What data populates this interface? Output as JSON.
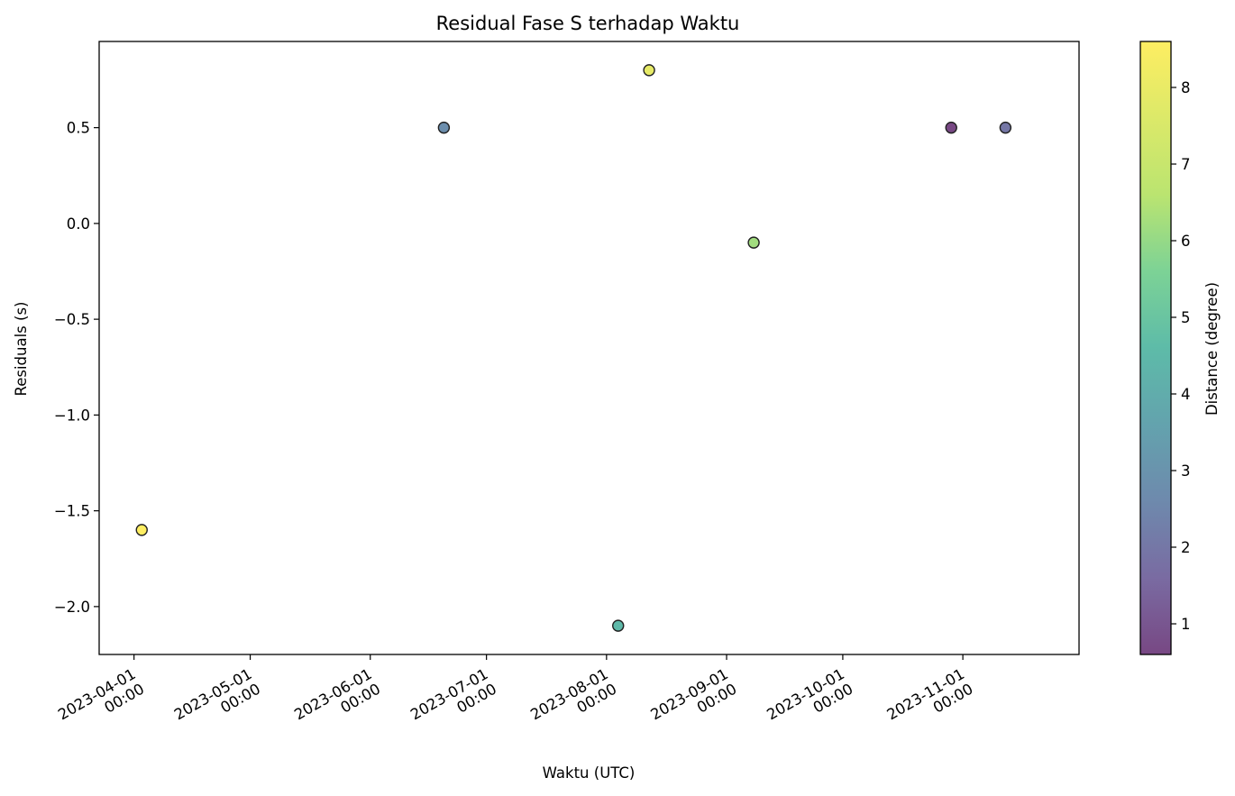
{
  "chart_data": {
    "type": "scatter",
    "title": "Residual Fase S terhadap Waktu",
    "xlabel": "Waktu (UTC)",
    "ylabel": "Residuals (s)",
    "colorbar_label": "Distance (degree)",
    "x_type": "datetime",
    "xlim": [
      "2023-03-23",
      "2023-12-01"
    ],
    "ylim": [
      -2.25,
      0.95
    ],
    "x_ticks": [
      {
        "date": "2023-04-01",
        "line1": "2023-04-01",
        "line2": "00:00"
      },
      {
        "date": "2023-05-01",
        "line1": "2023-05-01",
        "line2": "00:00"
      },
      {
        "date": "2023-06-01",
        "line1": "2023-06-01",
        "line2": "00:00"
      },
      {
        "date": "2023-07-01",
        "line1": "2023-07-01",
        "line2": "00:00"
      },
      {
        "date": "2023-08-01",
        "line1": "2023-08-01",
        "line2": "00:00"
      },
      {
        "date": "2023-09-01",
        "line1": "2023-09-01",
        "line2": "00:00"
      },
      {
        "date": "2023-10-01",
        "line1": "2023-10-01",
        "line2": "00:00"
      },
      {
        "date": "2023-11-01",
        "line1": "2023-11-01",
        "line2": "00:00"
      }
    ],
    "y_ticks": [
      {
        "value": 0.5,
        "label": "0.5"
      },
      {
        "value": 0.0,
        "label": "0.0"
      },
      {
        "value": -0.5,
        "label": "−0.5"
      },
      {
        "value": -1.0,
        "label": "−1.0"
      },
      {
        "value": -1.5,
        "label": "−1.5"
      },
      {
        "value": -2.0,
        "label": "−2.0"
      }
    ],
    "colorbar_range": [
      0.6,
      8.6
    ],
    "colorbar_ticks": [
      1,
      2,
      3,
      4,
      5,
      6,
      7,
      8
    ],
    "colormap": "viridis",
    "points": [
      {
        "x": "2023-04-03",
        "y": -1.6,
        "distance": 8.6
      },
      {
        "x": "2023-06-20",
        "y": 0.5,
        "distance": 2.8
      },
      {
        "x": "2023-08-04",
        "y": -2.1,
        "distance": 4.5
      },
      {
        "x": "2023-08-12",
        "y": 0.8,
        "distance": 7.9
      },
      {
        "x": "2023-09-08",
        "y": -0.1,
        "distance": 6.2
      },
      {
        "x": "2023-10-29",
        "y": 0.5,
        "distance": 0.6
      },
      {
        "x": "2023-11-12",
        "y": 0.5,
        "distance": 2.0
      }
    ],
    "grid": false,
    "legend": "none"
  }
}
